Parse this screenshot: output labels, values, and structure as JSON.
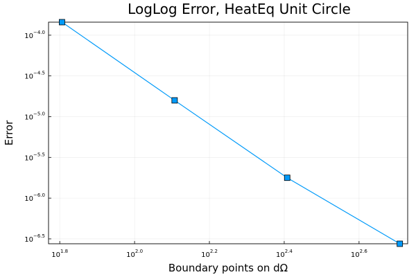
{
  "chart_data": {
    "type": "line",
    "title": "LogLog Error, HeatEq Unit Circle",
    "xlabel": "Boundary points on dΩ",
    "ylabel": "Error",
    "xscale": "log10",
    "yscale": "log10",
    "x_exponent_range": [
      1.77,
      2.73
    ],
    "y_exponent_range": [
      -6.56,
      -3.84
    ],
    "x_tick_exponents": [
      "1.8",
      "2.0",
      "2.2",
      "2.4",
      "2.6"
    ],
    "y_tick_exponents": [
      "-4.0",
      "-4.5",
      "-5.0",
      "-5.5",
      "-6.0",
      "-6.5"
    ],
    "grid": true,
    "legend": "none",
    "series": [
      {
        "color": "#009af9",
        "marker": "square",
        "x_exponent": [
          1.806,
          2.107,
          2.408,
          2.709
        ],
        "y_exponent": [
          -3.84,
          -4.8,
          -5.75,
          -6.56
        ]
      }
    ]
  }
}
